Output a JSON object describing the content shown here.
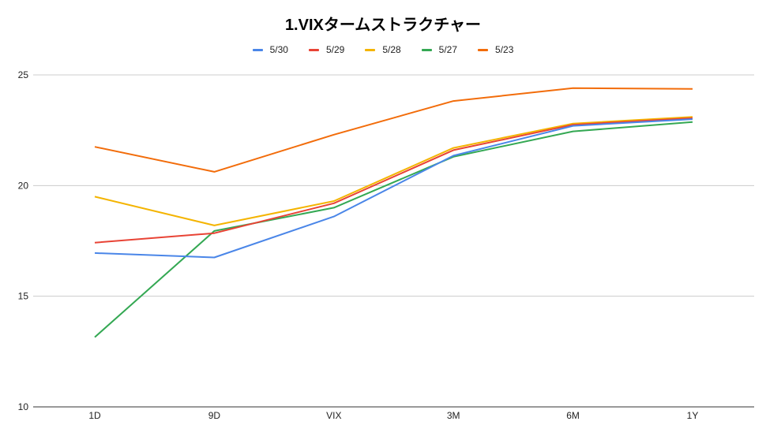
{
  "chart_data": {
    "type": "line",
    "title": "1.VIXタームストラクチャー",
    "xlabel": "",
    "ylabel": "",
    "categories": [
      "1D",
      "9D",
      "VIX",
      "3M",
      "6M",
      "1Y"
    ],
    "ylim": [
      10,
      25
    ],
    "yticks": [
      "10",
      "15",
      "20",
      "25"
    ],
    "grid": true,
    "legend_position": "top",
    "series": [
      {
        "name": "5/30",
        "color": "#4a86e8",
        "values": [
          16.95,
          16.75,
          18.6,
          21.35,
          22.7,
          23.0
        ]
      },
      {
        "name": "5/29",
        "color": "#e84335",
        "values": [
          17.42,
          17.85,
          19.2,
          21.6,
          22.75,
          23.05
        ]
      },
      {
        "name": "5/28",
        "color": "#f4b400",
        "values": [
          19.5,
          18.2,
          19.3,
          21.7,
          22.8,
          23.1
        ]
      },
      {
        "name": "5/27",
        "color": "#34a853",
        "values": [
          13.15,
          17.95,
          19.0,
          21.3,
          22.45,
          22.87
        ]
      },
      {
        "name": "5/23",
        "color": "#f26c0a",
        "values": [
          21.75,
          20.62,
          22.3,
          23.82,
          24.4,
          24.37
        ]
      }
    ]
  }
}
